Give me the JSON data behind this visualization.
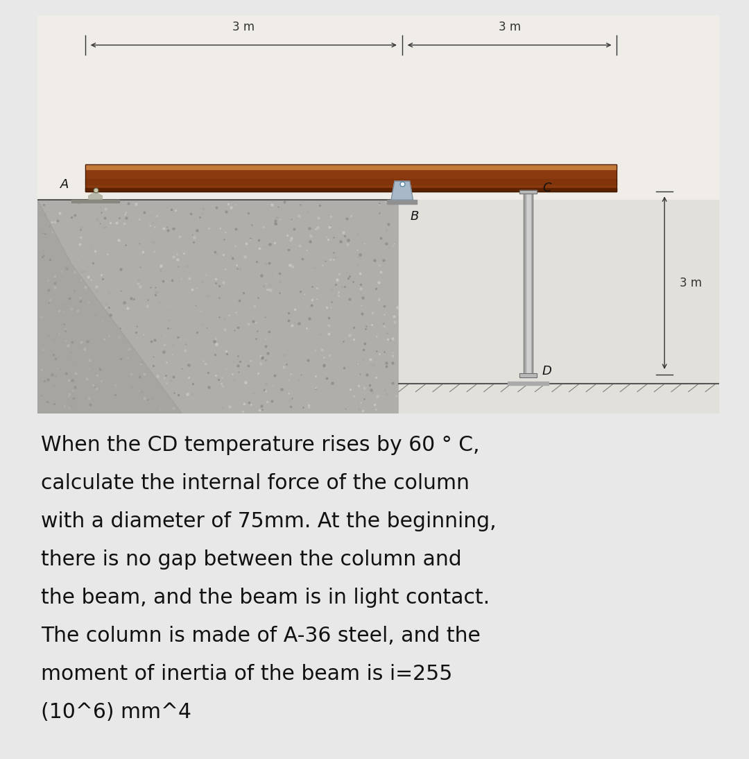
{
  "outer_bg": "#e8e8e8",
  "diagram_frame_bg": "#f0ede8",
  "left_concrete_color": "#b8b5b0",
  "right_wall_color": "#e8e6e2",
  "beam_color": "#8B3A10",
  "beam_top_color": "#C47A3A",
  "beam_mid_color": "#A0521A",
  "beam_bot_color": "#5C2200",
  "column_fill": "#d8d8d8",
  "column_edge": "#888888",
  "support_color": "#9aabbd",
  "ground_line_color": "#555555",
  "text_color": "#111111",
  "dim_color": "#333333",
  "label_A": "A",
  "label_B": "B",
  "label_C": "C",
  "label_D": "D",
  "dim_left": "3 m",
  "dim_right_h": "3 m",
  "dim_right_v": "3 m",
  "desc_lines": [
    "When the CD temperature rises by 60 ° C,",
    "calculate the internal force of the column",
    "with a diameter of 75mm. At the beginning,",
    "there is no gap between the column and",
    "the beam, and the beam is in light contact.",
    "The column is made of A-36 steel, and the",
    "moment of inertia of the beam is i=255",
    "(10^6) mm^4"
  ],
  "font_size_label": 13,
  "font_size_dim": 12,
  "font_size_desc": 21.5
}
